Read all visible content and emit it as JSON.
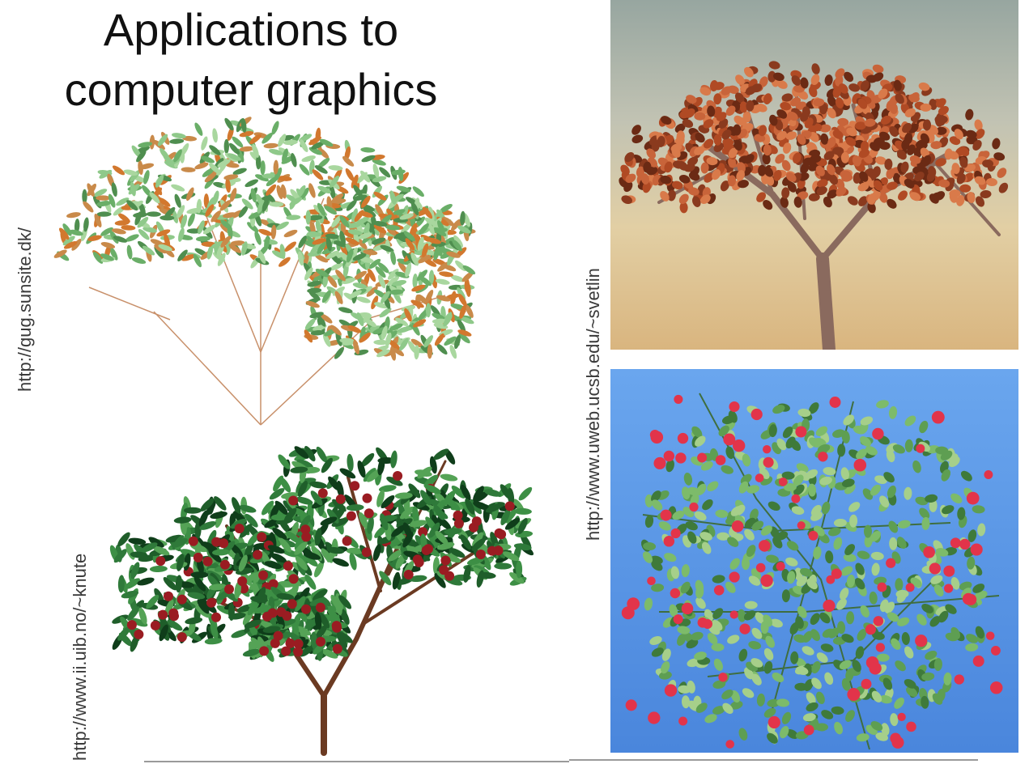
{
  "slide": {
    "title_line1": "Applications to",
    "title_line2": "computer graphics",
    "labels": {
      "top_left_source": "http://gug.sunsite.dk/",
      "bottom_left_source": "http://www.ii.uib.no/~knute",
      "right_source": "http://www.uweb.ucsb.edu/~svetlin"
    },
    "images": {
      "top_left": "green-leaf-tree-render",
      "bottom_left": "fruit-tree-render",
      "top_right": "autumn-maple-tree-sky-render",
      "bottom_right": "flowering-vine-blue-sky-render"
    },
    "colors": {
      "leaf_light": "#8fc98a",
      "leaf_dark": "#2f7a3a",
      "bud_orange": "#d2782e",
      "autumn_leaf": "#b04a24",
      "sky_blue": "#5e9ee6",
      "flower_red": "#e2344a"
    }
  }
}
